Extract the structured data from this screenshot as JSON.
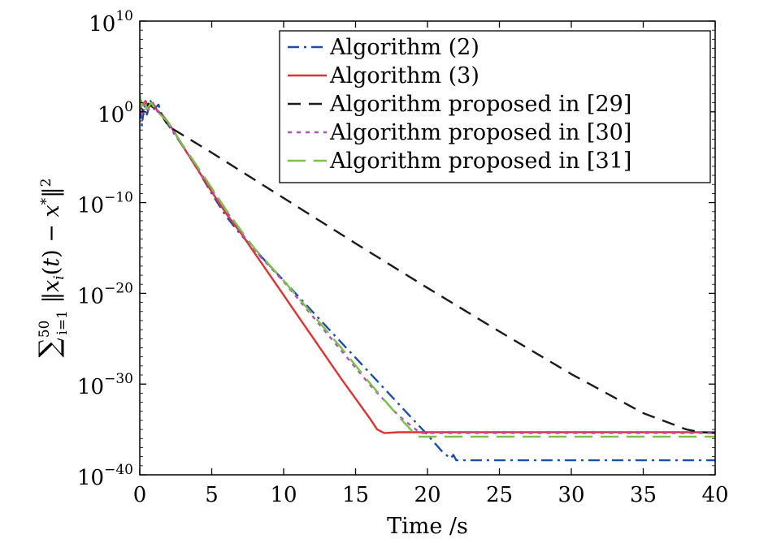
{
  "chart_data": {
    "type": "line",
    "title": "",
    "xlabel": "Time /s",
    "ylabel": "∑ ‖x (t) − x ‖",
    "ylabel_parts": {
      "sup_sum": "50",
      "sub_sum": "i=1",
      "sub_x": "i",
      "sup_star": "*",
      "sup_sq": "2"
    },
    "xlim": [
      0,
      40
    ],
    "ylim_exp": [
      -40,
      10
    ],
    "yscale": "log",
    "x_ticks": [
      "0",
      "5",
      "10",
      "15",
      "20",
      "25",
      "30",
      "35",
      "40"
    ],
    "y_tick_exponents": [
      "-40",
      "-30",
      "-20",
      "-10",
      "0",
      "10"
    ],
    "y_tick_base": "10",
    "grid": false,
    "legend_position": "top-right",
    "series": [
      {
        "name": "Algorithm (2)",
        "color": "#1f4ea8",
        "dash": "dashdot",
        "x": [
          0,
          0.15,
          0.3,
          0.5,
          0.75,
          1.0,
          1.3,
          1.6,
          2,
          3,
          4,
          5,
          6,
          7,
          8,
          10,
          12,
          14,
          16,
          18,
          20,
          21,
          21.6,
          21.8,
          22,
          25,
          30,
          35,
          40
        ],
        "y_exp": [
          0.5,
          -1.5,
          0.8,
          -0.3,
          1.2,
          0.3,
          0.8,
          -0.6,
          -1.5,
          -3.8,
          -6.3,
          -9.0,
          -11.5,
          -13.5,
          -15.2,
          -18.6,
          -22.0,
          -25.4,
          -28.8,
          -32.2,
          -35.6,
          -37.4,
          -38.2,
          -37.8,
          -38.4,
          -38.4,
          -38.4,
          -38.4,
          -38.4
        ]
      },
      {
        "name": "Algorithm (3)",
        "color": "#e03030",
        "dash": "solid",
        "x": [
          0,
          0.2,
          0.4,
          0.6,
          0.9,
          1.2,
          1.6,
          2,
          3,
          4,
          5,
          6,
          7,
          8,
          10,
          12,
          14,
          16,
          16.5,
          17,
          18,
          20,
          25,
          30,
          35,
          40
        ],
        "y_exp": [
          1.5,
          0.8,
          1.2,
          0.4,
          1.0,
          0.2,
          -0.4,
          -1.2,
          -3.8,
          -6.3,
          -8.8,
          -11.2,
          -13.3,
          -15.6,
          -20.2,
          -24.8,
          -29.4,
          -33.8,
          -35.0,
          -35.4,
          -35.3,
          -35.3,
          -35.3,
          -35.3,
          -35.3,
          -35.3
        ]
      },
      {
        "name": "Algorithm proposed in [29]",
        "color": "#1a1a1a",
        "dash": "dashed",
        "x": [
          0,
          0.3,
          0.6,
          1.0,
          1.5,
          2,
          5,
          10,
          15,
          20,
          25,
          30,
          35,
          38,
          39,
          40
        ],
        "y_exp": [
          1.0,
          -0.5,
          0.9,
          0.4,
          -0.3,
          -1.6,
          -4.5,
          -9.5,
          -14.5,
          -19.4,
          -24.2,
          -28.9,
          -33.2,
          -35.0,
          -35.3,
          -35.4
        ]
      },
      {
        "name": "Algorithm proposed in [30]",
        "color": "#b050c0",
        "dash": "dotted",
        "x": [
          0,
          0.15,
          0.35,
          0.6,
          0.9,
          1.2,
          1.6,
          2,
          3,
          4,
          5,
          6,
          7,
          8,
          10,
          12,
          14,
          16,
          18,
          19.5,
          20,
          25,
          30,
          35,
          40
        ],
        "y_exp": [
          1.3,
          -0.5,
          1.0,
          0.2,
          0.9,
          0.1,
          -0.5,
          -1.3,
          -3.8,
          -6.2,
          -8.6,
          -10.9,
          -13.2,
          -15.3,
          -18.7,
          -22.5,
          -26.3,
          -30.1,
          -33.5,
          -35.4,
          -35.4,
          -35.4,
          -35.4,
          -35.4,
          -35.4
        ]
      },
      {
        "name": "Algorithm proposed in [31]",
        "color": "#7cc04a",
        "dash": "longdash",
        "x": [
          0,
          0.1,
          0.3,
          0.5,
          0.8,
          1.1,
          1.5,
          2,
          3,
          4,
          5,
          6,
          7,
          8,
          10,
          12,
          14,
          16,
          18,
          19.3,
          20,
          25,
          30,
          35,
          40
        ],
        "y_exp": [
          2.0,
          0.5,
          1.3,
          0.3,
          1.0,
          0.2,
          -0.4,
          -1.2,
          -3.7,
          -6.0,
          -8.4,
          -10.8,
          -13.0,
          -15.1,
          -18.6,
          -22.3,
          -26.0,
          -29.9,
          -33.6,
          -35.8,
          -35.8,
          -35.8,
          -35.8,
          -35.8,
          -35.8
        ]
      }
    ]
  }
}
